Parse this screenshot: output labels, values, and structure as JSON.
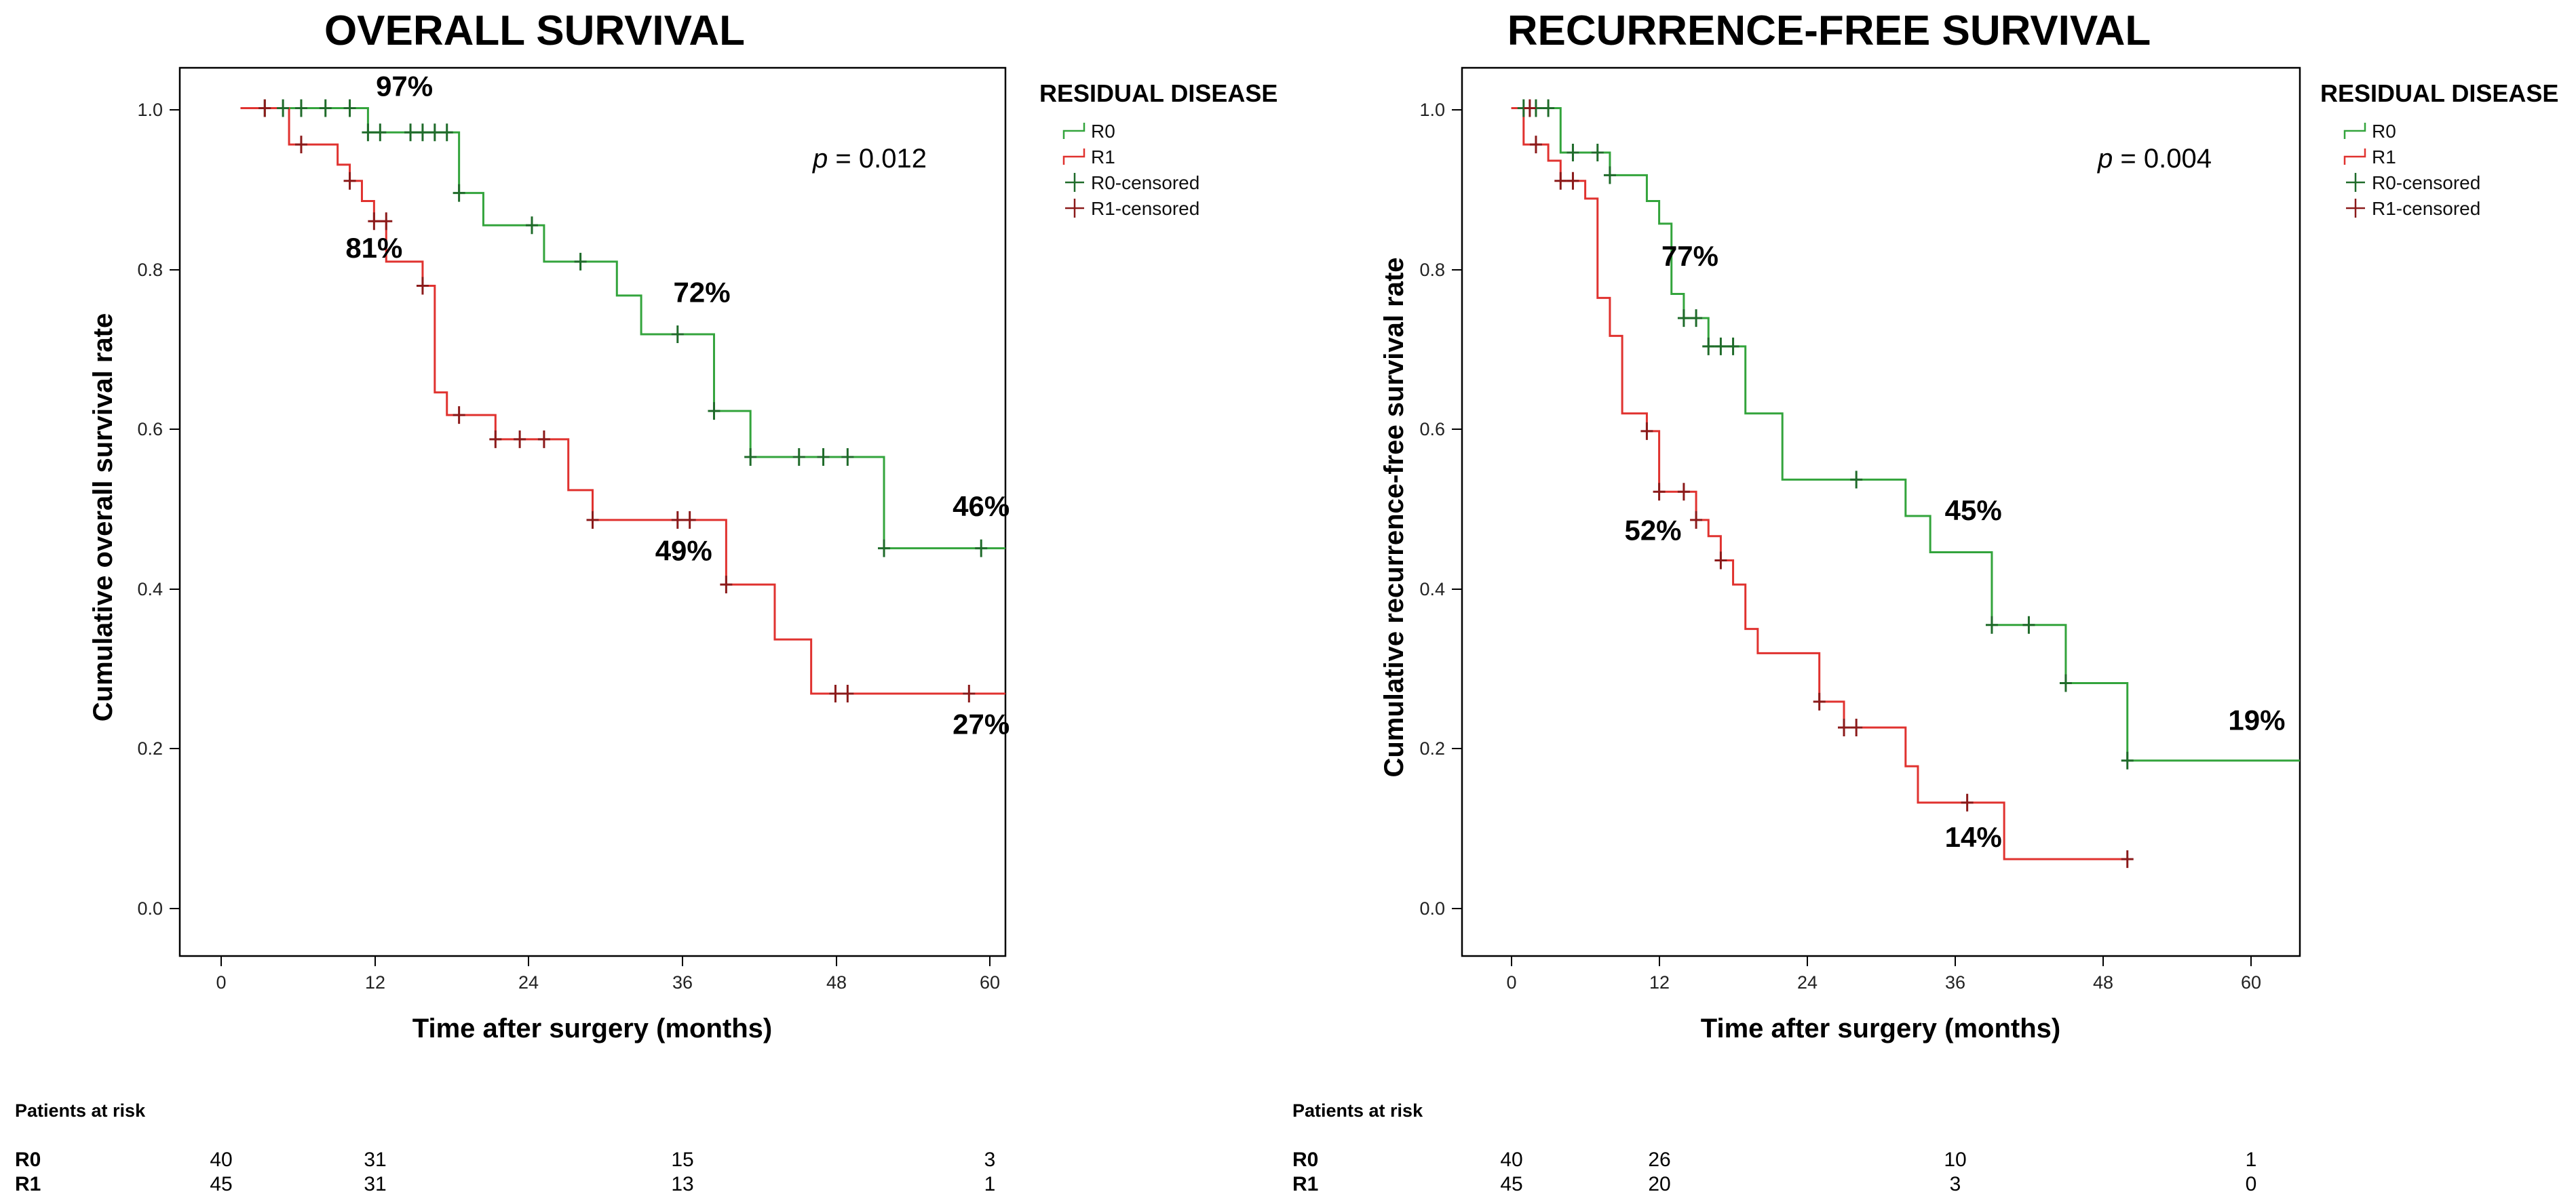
{
  "chart_data": [
    {
      "id": "os",
      "type": "line",
      "subtype": "kaplan-meier",
      "title": "OVERALL SURVIVAL",
      "xlabel": "Time after surgery (months)",
      "ylabel": "Cumulative overall survival rate",
      "xlim": [
        -5,
        63
      ],
      "ylim": [
        -0.05,
        1.05
      ],
      "xticks": [
        0,
        12,
        24,
        36,
        48,
        60
      ],
      "xtick_labels": [
        "0",
        "12",
        "24",
        "36",
        "48",
        "60"
      ],
      "yticks": [
        0,
        0.2,
        0.4,
        0.6,
        0.8,
        1.0
      ],
      "ytick_labels": [
        "0.0",
        "0.2",
        "0.4",
        "0.6",
        "0.8",
        "1.0"
      ],
      "legend_title": "RESIDUAL DISEASE",
      "legend": [
        "R0",
        "R1",
        "R0-censored",
        "R1-censored"
      ],
      "legend_position": "right",
      "p_value": {
        "prefix": "p",
        "text": " = 0.012"
      },
      "series": [
        {
          "name": "R0",
          "color": "#33a43c",
          "censor_color": "#1f6b2a",
          "steps": [
            [
              0,
              1.0
            ],
            [
              10.5,
              0.97
            ],
            [
              18,
              0.895
            ],
            [
              20,
              0.855
            ],
            [
              25,
              0.81
            ],
            [
              31,
              0.768
            ],
            [
              33,
              0.72
            ],
            [
              39,
              0.625
            ],
            [
              42,
              0.568
            ],
            [
              53,
              0.455
            ]
          ],
          "end_x": 63,
          "censored": [
            [
              2,
              1.0
            ],
            [
              3.5,
              1.0
            ],
            [
              5,
              1.0
            ],
            [
              7,
              1.0
            ],
            [
              9,
              1.0
            ],
            [
              10.5,
              0.97
            ],
            [
              11.5,
              0.97
            ],
            [
              14,
              0.97
            ],
            [
              15,
              0.97
            ],
            [
              16,
              0.97
            ],
            [
              17,
              0.97
            ],
            [
              18,
              0.895
            ],
            [
              24,
              0.855
            ],
            [
              28,
              0.81
            ],
            [
              36,
              0.72
            ],
            [
              39,
              0.625
            ],
            [
              42,
              0.568
            ],
            [
              46,
              0.568
            ],
            [
              48,
              0.568
            ],
            [
              50,
              0.568
            ],
            [
              53,
              0.455
            ],
            [
              61,
              0.455
            ]
          ]
        },
        {
          "name": "R1",
          "color": "#e0322f",
          "censor_color": "#8b1a1a",
          "steps": [
            [
              0,
              1.0
            ],
            [
              4,
              0.955
            ],
            [
              8,
              0.93
            ],
            [
              9,
              0.91
            ],
            [
              10,
              0.885
            ],
            [
              11,
              0.86
            ],
            [
              12,
              0.81
            ],
            [
              15,
              0.78
            ],
            [
              16,
              0.648
            ],
            [
              17,
              0.62
            ],
            [
              21,
              0.59
            ],
            [
              27,
              0.527
            ],
            [
              29,
              0.49
            ],
            [
              40,
              0.41
            ],
            [
              44,
              0.342
            ],
            [
              47,
              0.275
            ]
          ],
          "end_x": 63,
          "censored": [
            [
              2,
              1.0
            ],
            [
              5,
              0.955
            ],
            [
              9,
              0.91
            ],
            [
              11,
              0.86
            ],
            [
              12,
              0.86
            ],
            [
              15,
              0.78
            ],
            [
              18,
              0.62
            ],
            [
              21,
              0.59
            ],
            [
              23,
              0.59
            ],
            [
              25,
              0.59
            ],
            [
              29,
              0.49
            ],
            [
              36,
              0.49
            ],
            [
              37,
              0.49
            ],
            [
              40,
              0.41
            ],
            [
              49,
              0.275
            ],
            [
              50,
              0.275
            ],
            [
              60,
              0.275
            ]
          ]
        }
      ],
      "annotations": [
        {
          "text": "97%",
          "x": 13.5,
          "y": 1.015
        },
        {
          "text": "81%",
          "x": 11,
          "y": 0.815
        },
        {
          "text": "72%",
          "x": 38,
          "y": 0.76
        },
        {
          "text": "49%",
          "x": 36.5,
          "y": 0.44
        },
        {
          "text": "46%",
          "x": 61,
          "y": 0.495
        },
        {
          "text": "27%",
          "x": 61,
          "y": 0.225
        }
      ],
      "patients_at_risk": {
        "title": "Patients at risk",
        "groups": [
          {
            "label": "R0",
            "values": [
              "40",
              "31",
              "15",
              "3"
            ]
          },
          {
            "label": "R1",
            "values": [
              "45",
              "31",
              "13",
              "1"
            ]
          }
        ]
      }
    },
    {
      "id": "rfs",
      "type": "line",
      "subtype": "kaplan-meier",
      "title": "RECURRENCE-FREE SURVIVAL",
      "xlabel": "Time after surgery (months)",
      "ylabel": "Cumulative recurrence-free survival rate",
      "xlim": [
        -4,
        64
      ],
      "ylim": [
        -0.05,
        1.05
      ],
      "xticks": [
        0,
        12,
        24,
        36,
        48,
        60
      ],
      "xtick_labels": [
        "0",
        "12",
        "24",
        "36",
        "48",
        "60"
      ],
      "yticks": [
        0,
        0.2,
        0.4,
        0.6,
        0.8,
        1.0
      ],
      "ytick_labels": [
        "0.0",
        "0.2",
        "0.4",
        "0.6",
        "0.8",
        "1.0"
      ],
      "legend_title": "RESIDUAL DISEASE",
      "legend": [
        "R0",
        "R1",
        "R0-censored",
        "R1-censored"
      ],
      "legend_position": "right",
      "p_value": {
        "prefix": "p",
        "text": " = 0.004"
      },
      "series": [
        {
          "name": "R0",
          "color": "#33a43c",
          "censor_color": "#1f6b2a",
          "steps": [
            [
              0,
              1.0
            ],
            [
              4,
              0.945
            ],
            [
              8,
              0.917
            ],
            [
              11,
              0.885
            ],
            [
              12,
              0.857
            ],
            [
              13,
              0.77
            ],
            [
              14,
              0.74
            ],
            [
              16,
              0.705
            ],
            [
              19,
              0.622
            ],
            [
              22,
              0.54
            ],
            [
              32,
              0.495
            ],
            [
              34,
              0.45
            ],
            [
              39,
              0.36
            ],
            [
              45,
              0.288
            ],
            [
              50,
              0.192
            ]
          ],
          "end_x": 64,
          "censored": [
            [
              1,
              1.0
            ],
            [
              2,
              1.0
            ],
            [
              3,
              1.0
            ],
            [
              5,
              0.945
            ],
            [
              7,
              0.945
            ],
            [
              8,
              0.917
            ],
            [
              14,
              0.74
            ],
            [
              15,
              0.74
            ],
            [
              16,
              0.705
            ],
            [
              17,
              0.705
            ],
            [
              18,
              0.705
            ],
            [
              28,
              0.54
            ],
            [
              39,
              0.36
            ],
            [
              42,
              0.36
            ],
            [
              45,
              0.288
            ],
            [
              50,
              0.192
            ]
          ]
        },
        {
          "name": "R1",
          "color": "#e0322f",
          "censor_color": "#8b1a1a",
          "steps": [
            [
              0,
              1.0
            ],
            [
              1,
              0.955
            ],
            [
              3,
              0.935
            ],
            [
              4,
              0.91
            ],
            [
              6,
              0.888
            ],
            [
              7,
              0.765
            ],
            [
              8,
              0.718
            ],
            [
              9,
              0.622
            ],
            [
              11,
              0.6
            ],
            [
              12,
              0.525
            ],
            [
              15,
              0.49
            ],
            [
              16,
              0.47
            ],
            [
              17,
              0.44
            ],
            [
              18,
              0.41
            ],
            [
              19,
              0.355
            ],
            [
              20,
              0.325
            ],
            [
              25,
              0.265
            ],
            [
              27,
              0.233
            ],
            [
              32,
              0.185
            ],
            [
              33,
              0.14
            ],
            [
              40,
              0.07
            ]
          ],
          "end_x": 50,
          "censored": [
            [
              1.5,
              1.0
            ],
            [
              2,
              0.955
            ],
            [
              4,
              0.91
            ],
            [
              5,
              0.91
            ],
            [
              11,
              0.6
            ],
            [
              12,
              0.525
            ],
            [
              14,
              0.525
            ],
            [
              15,
              0.49
            ],
            [
              17,
              0.44
            ],
            [
              25,
              0.265
            ],
            [
              27,
              0.233
            ],
            [
              28,
              0.233
            ],
            [
              37,
              0.14
            ],
            [
              50,
              0.07
            ]
          ]
        }
      ],
      "annotations": [
        {
          "text": "77%",
          "x": 14.5,
          "y": 0.805
        },
        {
          "text": "52%",
          "x": 11.5,
          "y": 0.465
        },
        {
          "text": "45%",
          "x": 37.5,
          "y": 0.49
        },
        {
          "text": "14%",
          "x": 37.5,
          "y": 0.085
        },
        {
          "text": "19%",
          "x": 60.5,
          "y": 0.23
        }
      ],
      "patients_at_risk": {
        "title": "Patients at risk",
        "groups": [
          {
            "label": "R0",
            "values": [
              "40",
              "26",
              "10",
              "1"
            ]
          },
          {
            "label": "R1",
            "values": [
              "45",
              "20",
              "3",
              "0"
            ]
          }
        ]
      }
    }
  ]
}
